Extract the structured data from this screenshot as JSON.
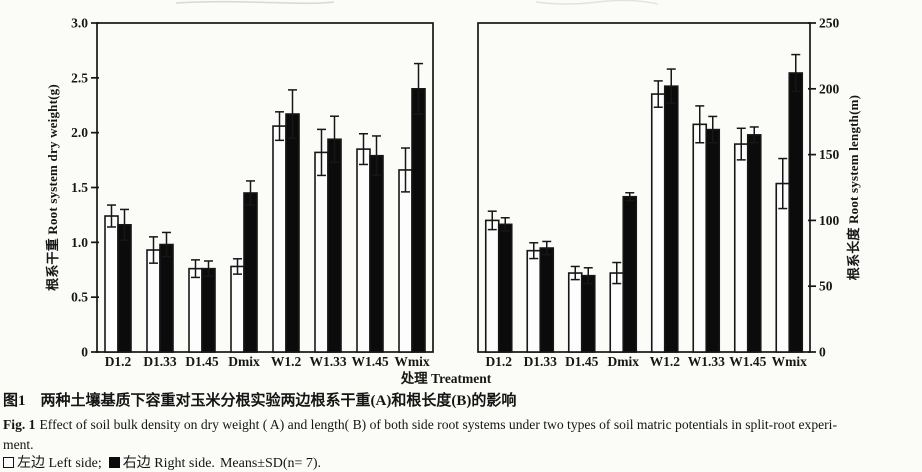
{
  "colors": {
    "axis": "#161616",
    "bar_black": "#0b0b0b",
    "bar_white": "#fdfdfd",
    "background": "#fbfbf8"
  },
  "xlabel": "处理 Treatment",
  "chart_data": [
    {
      "id": "A",
      "type": "bar",
      "title": "Root system dry weight (panel A)",
      "categories": [
        "D1.2",
        "D1.33",
        "D1.45",
        "Dmix",
        "W1.2",
        "W1.33",
        "W1.45",
        "Wmix"
      ],
      "series": [
        {
          "name": "左边 Left side",
          "fill": "#fdfdfd",
          "values": [
            1.24,
            0.93,
            0.76,
            0.78,
            2.06,
            1.82,
            1.85,
            1.66
          ],
          "sd": [
            0.1,
            0.12,
            0.08,
            0.07,
            0.13,
            0.21,
            0.14,
            0.2
          ]
        },
        {
          "name": "右边 Right side",
          "fill": "#0b0b0b",
          "values": [
            1.16,
            0.98,
            0.76,
            1.45,
            2.17,
            1.94,
            1.79,
            2.4
          ],
          "sd": [
            0.14,
            0.11,
            0.07,
            0.11,
            0.22,
            0.21,
            0.18,
            0.23
          ]
        }
      ],
      "ylabel": "根系干重 Root system dry weight(g)",
      "ylim": [
        0,
        3.0
      ],
      "yticks": [
        "0",
        "0.5",
        "1.0",
        "1.5",
        "2.0",
        "2.5",
        "3.0"
      ],
      "axis_side": "left",
      "grid": false,
      "error_bars": "±SD"
    },
    {
      "id": "B",
      "type": "bar",
      "title": "Root system length (panel B)",
      "categories": [
        "D1.2",
        "D1.33",
        "D1.45",
        "Dmix",
        "W1.2",
        "W1.33",
        "W1.45",
        "Wmix"
      ],
      "series": [
        {
          "name": "左边 Left side",
          "fill": "#fdfdfd",
          "values": [
            100,
            77,
            60,
            60,
            196,
            173,
            158,
            128
          ],
          "sd": [
            7,
            6,
            5,
            8,
            10,
            14,
            12,
            19
          ]
        },
        {
          "name": "右边 Right side",
          "fill": "#0b0b0b",
          "values": [
            97,
            79,
            58,
            118,
            202,
            169,
            165,
            212
          ],
          "sd": [
            5,
            5,
            6,
            3,
            13,
            10,
            6,
            14
          ]
        }
      ],
      "ylabel": "根系长度 Root system length(m)",
      "ylim": [
        0,
        250
      ],
      "yticks": [
        "0",
        "50",
        "100",
        "150",
        "200",
        "250"
      ],
      "axis_side": "right",
      "grid": false,
      "error_bars": "±SD"
    }
  ],
  "caption": {
    "line1_label": "图1",
    "line1_text": "两种土壤基质下容重对玉米分根实验两边根系干重(A)和根长度(B)的影响",
    "line2_label": "Fig. 1",
    "line2_text": "Effect of soil bulk density on dry weight ( A) and length( B) of both side root systems under two types of soil matric potentials in split-root experi-",
    "line3": "ment.",
    "legend": {
      "left_label": "左边 Left side;",
      "right_label": "右边 Right side.",
      "stats": "Means±SD(n= 7)."
    }
  }
}
